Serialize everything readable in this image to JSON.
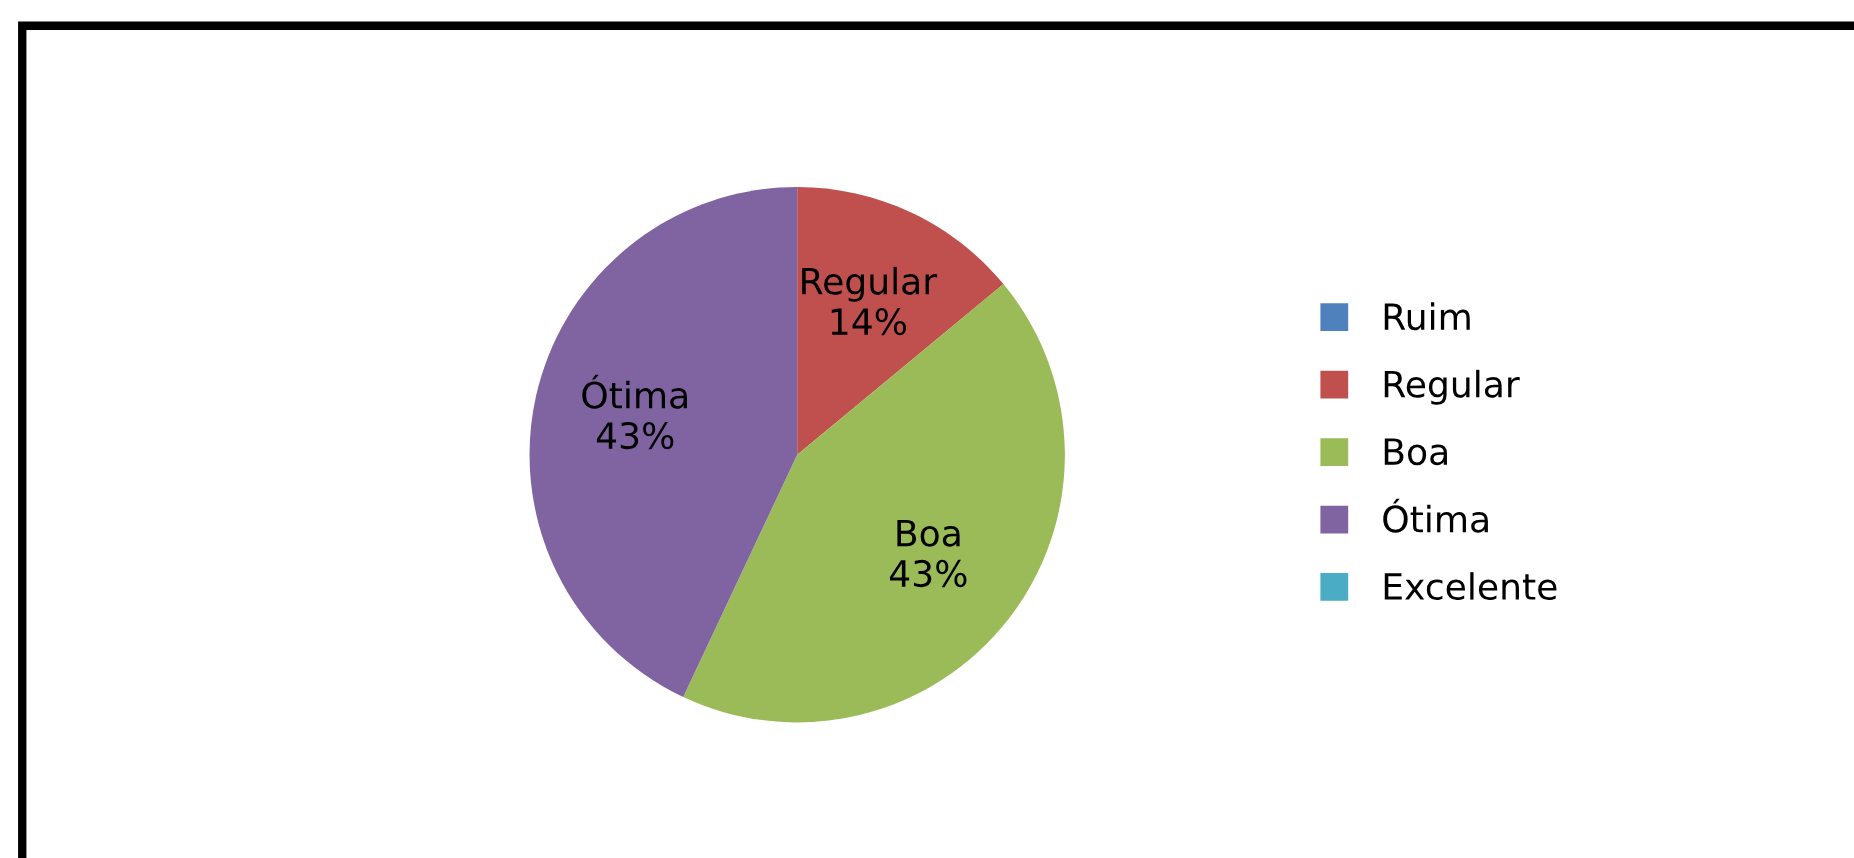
{
  "chart_data": {
    "type": "pie",
    "categories": [
      "Ruim",
      "Regular",
      "Boa",
      "Ótima",
      "Excelente"
    ],
    "values": [
      0,
      14,
      43,
      43,
      0
    ],
    "colors": [
      "#4f81bd",
      "#c0504d",
      "#9bbb59",
      "#8064a2",
      "#4bacc6"
    ],
    "value_labels": [
      null,
      "14%",
      "43%",
      "43%",
      null
    ],
    "legend": "right"
  }
}
